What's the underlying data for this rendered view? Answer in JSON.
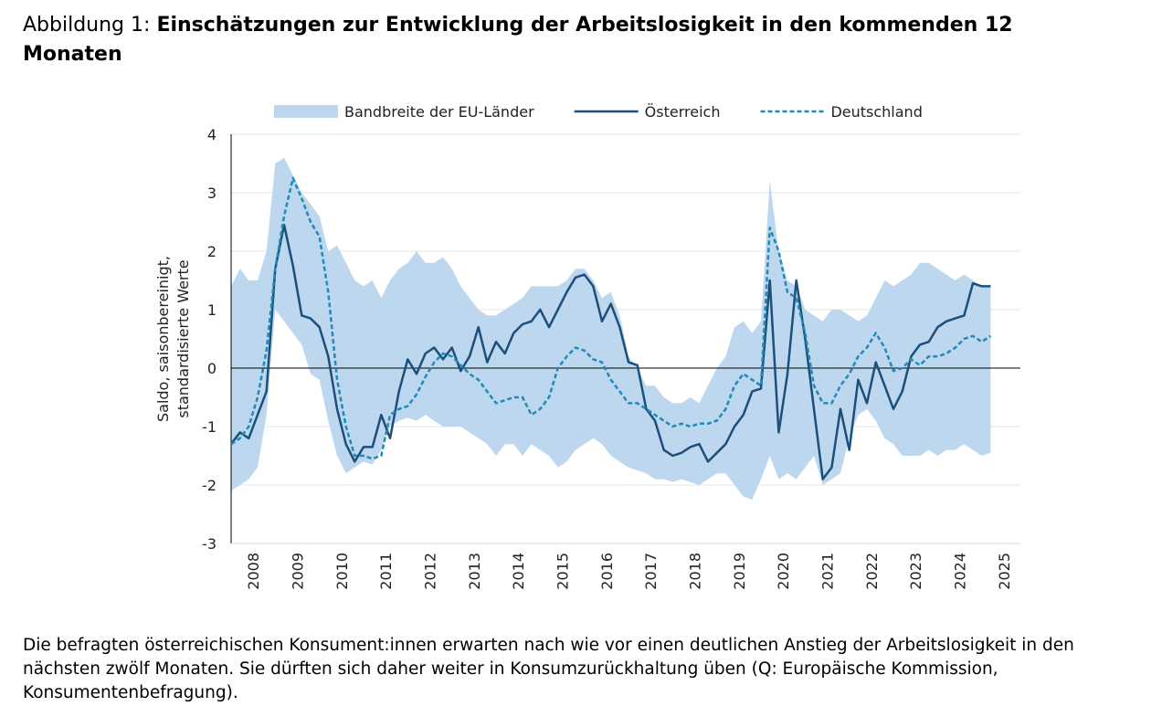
{
  "chart_data": {
    "type": "line",
    "title_prefix": "Abbildung 1:",
    "title": "Einschätzungen zur Entwicklung der Arbeitslosigkeit in den kommenden 12 Monaten",
    "caption": "Die befragten österreichischen Konsument:innen erwarten nach wie vor einen deutlichen Anstieg der Arbeitslosigkeit in den nächsten zwölf Monaten. Sie dürften sich daher weiter in Konsumzurückhaltung üben (Q: Europäische Kommission, Konsumentenbefragung).",
    "ylabel": [
      "Saldo, saisonbereinigt,",
      "standardisierte Werte"
    ],
    "legend": "top",
    "grid": true,
    "xlim": [
      2008,
      2025.875
    ],
    "ylim": [
      -3,
      4
    ],
    "yticks": [
      -3,
      -2,
      -1,
      0,
      1,
      2,
      3,
      4
    ],
    "xticks": [
      {
        "value": 2008.5,
        "label": "2008"
      },
      {
        "value": 2009.5,
        "label": "2009"
      },
      {
        "value": 2010.5,
        "label": "2010"
      },
      {
        "value": 2011.5,
        "label": "2011"
      },
      {
        "value": 2012.5,
        "label": "2012"
      },
      {
        "value": 2013.5,
        "label": "2013"
      },
      {
        "value": 2014.5,
        "label": "2014"
      },
      {
        "value": 2015.5,
        "label": "2015"
      },
      {
        "value": 2016.5,
        "label": "2016"
      },
      {
        "value": 2017.5,
        "label": "2017"
      },
      {
        "value": 2018.5,
        "label": "2018"
      },
      {
        "value": 2019.5,
        "label": "2019"
      },
      {
        "value": 2020.5,
        "label": "2020"
      },
      {
        "value": 2021.5,
        "label": "2021"
      },
      {
        "value": 2022.5,
        "label": "2022"
      },
      {
        "value": 2023.5,
        "label": "2023"
      },
      {
        "value": 2024.5,
        "label": "2024"
      },
      {
        "value": 2025.5,
        "label": "2025"
      }
    ],
    "x": [
      2008.0,
      2008.2,
      2008.4,
      2008.6,
      2008.8,
      2009.0,
      2009.2,
      2009.4,
      2009.6,
      2009.8,
      2010.0,
      2010.2,
      2010.4,
      2010.6,
      2010.8,
      2011.0,
      2011.2,
      2011.4,
      2011.6,
      2011.8,
      2012.0,
      2012.2,
      2012.4,
      2012.6,
      2012.8,
      2013.0,
      2013.2,
      2013.4,
      2013.6,
      2013.8,
      2014.0,
      2014.2,
      2014.4,
      2014.6,
      2014.8,
      2015.0,
      2015.2,
      2015.4,
      2015.6,
      2015.8,
      2016.0,
      2016.2,
      2016.4,
      2016.6,
      2016.8,
      2017.0,
      2017.2,
      2017.4,
      2017.6,
      2017.8,
      2018.0,
      2018.2,
      2018.4,
      2018.6,
      2018.8,
      2019.0,
      2019.2,
      2019.4,
      2019.6,
      2019.8,
      2020.0,
      2020.2,
      2020.4,
      2020.6,
      2020.8,
      2021.0,
      2021.2,
      2021.4,
      2021.6,
      2021.8,
      2022.0,
      2022.2,
      2022.4,
      2022.6,
      2022.8,
      2023.0,
      2023.2,
      2023.4,
      2023.6,
      2023.8,
      2024.0,
      2024.2,
      2024.4,
      2024.6,
      2024.8,
      2025.0,
      2025.2
    ],
    "series": [
      {
        "name": "Bandbreite der EU-Länder",
        "kind": "band",
        "color": "#bcd7ee",
        "upper": [
          1.4,
          1.7,
          1.5,
          1.5,
          2.0,
          3.5,
          3.6,
          3.3,
          3.0,
          2.8,
          2.6,
          2.0,
          2.1,
          1.8,
          1.5,
          1.4,
          1.5,
          1.2,
          1.5,
          1.7,
          1.8,
          2.0,
          1.8,
          1.8,
          1.9,
          1.7,
          1.4,
          1.2,
          1.0,
          0.9,
          0.9,
          1.0,
          1.1,
          1.2,
          1.4,
          1.4,
          1.4,
          1.4,
          1.5,
          1.7,
          1.7,
          1.5,
          1.2,
          1.3,
          0.9,
          0.2,
          0.0,
          -0.3,
          -0.3,
          -0.5,
          -0.6,
          -0.6,
          -0.5,
          -0.6,
          -0.3,
          0.0,
          0.2,
          0.7,
          0.8,
          0.6,
          0.8,
          3.2,
          2.0,
          1.5,
          1.4,
          1.0,
          0.9,
          0.8,
          1.0,
          1.0,
          0.9,
          0.8,
          0.9,
          1.2,
          1.5,
          1.4,
          1.5,
          1.6,
          1.8,
          1.8,
          1.7,
          1.6,
          1.5,
          1.6,
          1.5,
          1.4,
          1.4
        ],
        "lower": [
          -2.1,
          -2.0,
          -1.9,
          -1.7,
          -0.8,
          1.0,
          0.8,
          0.6,
          0.4,
          -0.1,
          -0.2,
          -0.9,
          -1.5,
          -1.8,
          -1.7,
          -1.6,
          -1.65,
          -1.4,
          -1.0,
          -0.9,
          -0.85,
          -0.9,
          -0.8,
          -0.9,
          -1.0,
          -1.0,
          -1.0,
          -1.1,
          -1.2,
          -1.3,
          -1.5,
          -1.3,
          -1.3,
          -1.5,
          -1.3,
          -1.4,
          -1.5,
          -1.7,
          -1.6,
          -1.4,
          -1.3,
          -1.2,
          -1.3,
          -1.5,
          -1.6,
          -1.7,
          -1.75,
          -1.8,
          -1.9,
          -1.9,
          -1.95,
          -1.9,
          -1.95,
          -2.0,
          -1.9,
          -1.8,
          -1.8,
          -2.0,
          -2.2,
          -2.25,
          -1.9,
          -1.5,
          -1.9,
          -1.8,
          -1.9,
          -1.7,
          -1.5,
          -2.0,
          -1.9,
          -1.8,
          -1.2,
          -0.8,
          -0.7,
          -0.9,
          -1.2,
          -1.3,
          -1.5,
          -1.5,
          -1.5,
          -1.4,
          -1.5,
          -1.4,
          -1.4,
          -1.3,
          -1.4,
          -1.5,
          -1.45
        ]
      },
      {
        "name": "Österreich",
        "kind": "line",
        "color": "#1c4f7c",
        "dash": false,
        "values": [
          -1.3,
          -1.1,
          -1.2,
          -0.8,
          -0.4,
          1.7,
          2.45,
          1.75,
          0.9,
          0.85,
          0.7,
          0.2,
          -0.7,
          -1.3,
          -1.6,
          -1.35,
          -1.35,
          -0.8,
          -1.2,
          -0.4,
          0.15,
          -0.1,
          0.25,
          0.35,
          0.15,
          0.35,
          -0.05,
          0.2,
          0.7,
          0.1,
          0.45,
          0.25,
          0.6,
          0.75,
          0.8,
          1.0,
          0.7,
          1.0,
          1.3,
          1.55,
          1.6,
          1.4,
          0.8,
          1.1,
          0.7,
          0.1,
          0.05,
          -0.7,
          -0.9,
          -1.4,
          -1.5,
          -1.45,
          -1.35,
          -1.3,
          -1.6,
          -1.45,
          -1.3,
          -1.0,
          -0.8,
          -0.4,
          -0.35,
          1.5,
          -1.1,
          -0.1,
          1.5,
          0.5,
          -0.7,
          -1.9,
          -1.7,
          -0.7,
          -1.4,
          -0.2,
          -0.6,
          0.1,
          -0.3,
          -0.7,
          -0.4,
          0.2,
          0.4,
          0.45,
          0.7,
          0.8,
          0.85,
          0.9,
          1.45,
          1.4,
          1.4
        ]
      },
      {
        "name": "Deutschland",
        "kind": "line",
        "color": "#1f8bb6",
        "dash": true,
        "values": [
          -1.3,
          -1.2,
          -1.0,
          -0.5,
          0.3,
          1.7,
          2.6,
          3.25,
          2.9,
          2.5,
          2.25,
          1.3,
          -0.2,
          -1.0,
          -1.5,
          -1.5,
          -1.55,
          -1.5,
          -0.8,
          -0.7,
          -0.65,
          -0.45,
          -0.15,
          0.1,
          0.25,
          0.2,
          0.05,
          -0.1,
          -0.2,
          -0.4,
          -0.6,
          -0.55,
          -0.5,
          -0.5,
          -0.8,
          -0.7,
          -0.5,
          0.0,
          0.2,
          0.35,
          0.3,
          0.15,
          0.1,
          -0.2,
          -0.4,
          -0.6,
          -0.6,
          -0.7,
          -0.8,
          -0.9,
          -1.0,
          -0.95,
          -1.0,
          -0.95,
          -0.95,
          -0.9,
          -0.7,
          -0.3,
          -0.1,
          -0.2,
          -0.3,
          2.4,
          2.0,
          1.3,
          1.2,
          0.6,
          -0.3,
          -0.6,
          -0.6,
          -0.3,
          -0.1,
          0.2,
          0.35,
          0.6,
          0.35,
          -0.05,
          0.0,
          0.15,
          0.05,
          0.2,
          0.2,
          0.25,
          0.35,
          0.5,
          0.55,
          0.45,
          0.55
        ]
      }
    ]
  }
}
